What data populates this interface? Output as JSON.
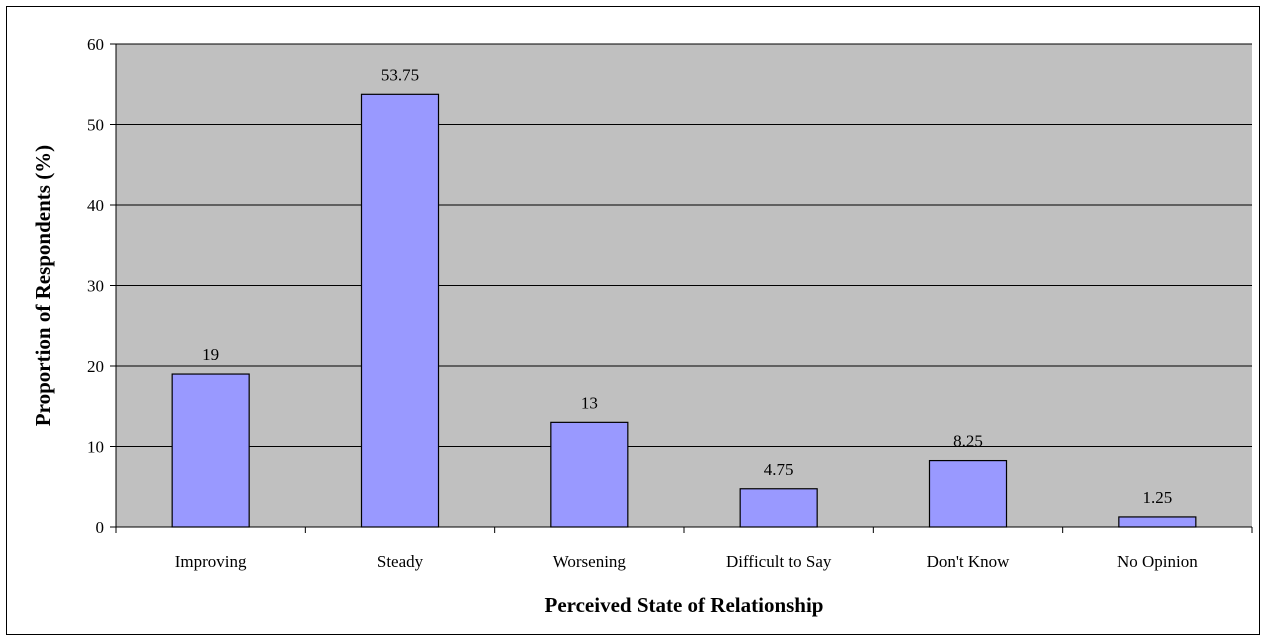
{
  "chart_data": {
    "type": "bar",
    "categories": [
      "Improving",
      "Steady",
      "Worsening",
      "Difficult to Say",
      "Don't Know",
      "No Opinion"
    ],
    "values": [
      19,
      53.75,
      13,
      4.75,
      8.25,
      1.25
    ],
    "data_labels": [
      "19",
      "53.75",
      "13",
      "4.75",
      "8.25",
      "1.25"
    ],
    "xlabel": "Perceived State of Relationship",
    "ylabel": "Proportion of Respondents (%)",
    "ylim": [
      0,
      60
    ],
    "yticks": [
      0,
      10,
      20,
      30,
      40,
      50,
      60
    ],
    "grid": true,
    "colors": {
      "plot_background": "#c0c0c0",
      "bar_fill": "#9999ff",
      "bar_stroke": "#000000",
      "gridline": "#000000"
    }
  }
}
